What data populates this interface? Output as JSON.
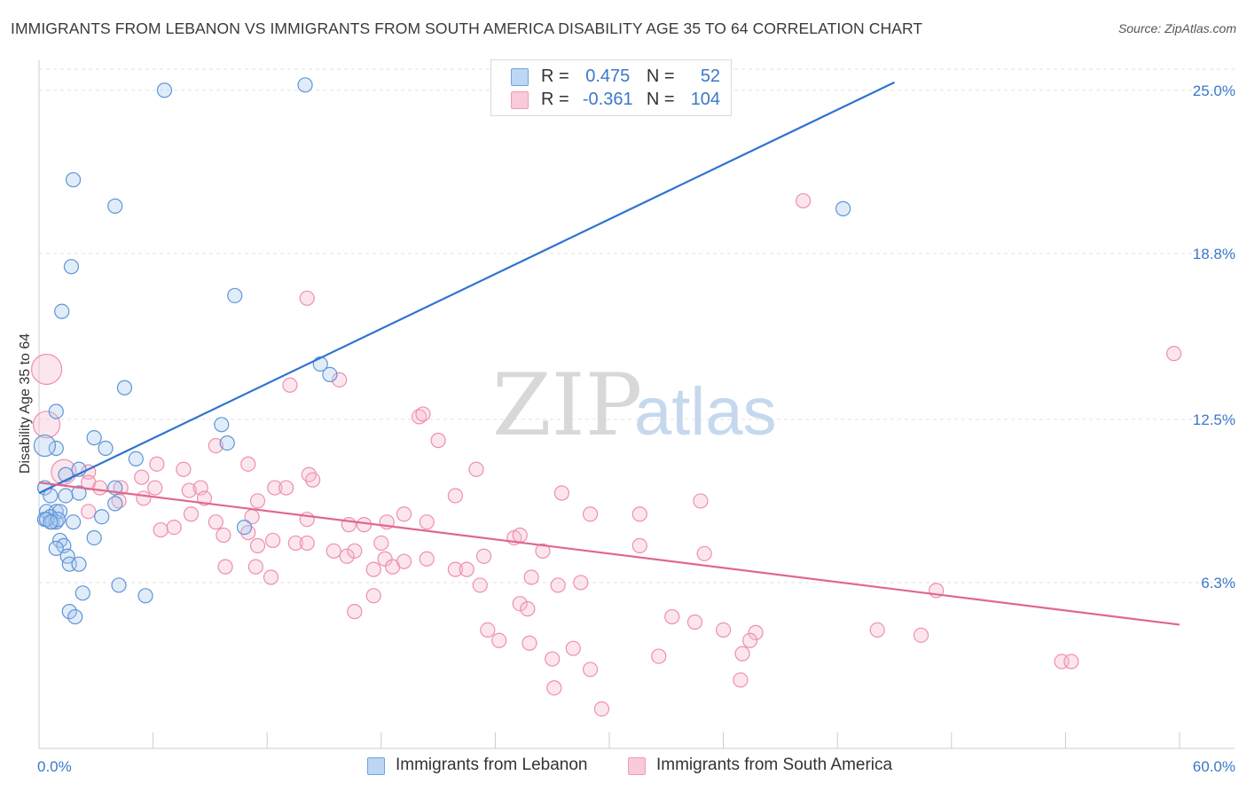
{
  "title": "IMMIGRANTS FROM LEBANON VS IMMIGRANTS FROM SOUTH AMERICA DISABILITY AGE 35 TO 64 CORRELATION CHART",
  "source": "Source: ZipAtlas.com",
  "watermark": {
    "zip": "ZIP",
    "atlas": "atlas"
  },
  "legend": {
    "rows": [
      {
        "r_label": "R =",
        "r_value": "0.475",
        "n_label": "N =",
        "n_value": "52",
        "color": "#a8c8ef"
      },
      {
        "r_label": "R =",
        "r_value": "-0.361",
        "n_label": "N =",
        "n_value": "104",
        "color": "#f6b6cb"
      }
    ]
  },
  "bottom_legend": {
    "series1": "Immigrants from Lebanon",
    "series2": "Immigrants from South America"
  },
  "chart_data": {
    "type": "scatter",
    "title": "IMMIGRANTS FROM LEBANON VS IMMIGRANTS FROM SOUTH AMERICA DISABILITY AGE 35 TO 64 CORRELATION CHART",
    "xlabel": "",
    "ylabel": "Disability Age 35 to 64",
    "xlim": [
      0,
      60
    ],
    "ylim": [
      0,
      25.8
    ],
    "x_tick_labels": [
      "0.0%",
      "60.0%"
    ],
    "y_ticks": [
      6.3,
      12.5,
      18.8,
      25.0
    ],
    "y_tick_labels": [
      "6.3%",
      "12.5%",
      "18.8%",
      "25.0%"
    ],
    "grid": true,
    "series": [
      {
        "name": "Immigrants from Lebanon",
        "color": "#6fa3e0",
        "trend": {
          "x": [
            0,
            45
          ],
          "y": [
            9.7,
            25.3
          ],
          "color": "#2f73d0"
        },
        "points": [
          [
            6.6,
            25.0
          ],
          [
            14.0,
            25.2
          ],
          [
            1.8,
            21.6
          ],
          [
            4.0,
            20.6
          ],
          [
            1.7,
            18.3
          ],
          [
            10.3,
            17.2
          ],
          [
            1.2,
            16.6
          ],
          [
            14.8,
            14.6
          ],
          [
            15.3,
            14.2
          ],
          [
            4.5,
            13.7
          ],
          [
            42.3,
            20.5
          ],
          [
            0.9,
            12.8
          ],
          [
            9.6,
            12.3
          ],
          [
            9.9,
            11.6
          ],
          [
            2.9,
            11.8
          ],
          [
            3.5,
            11.4
          ],
          [
            0.9,
            11.4
          ],
          [
            5.1,
            11.0
          ],
          [
            2.1,
            10.6
          ],
          [
            1.4,
            10.4
          ],
          [
            0.3,
            9.9
          ],
          [
            0.6,
            9.6
          ],
          [
            1.4,
            9.6
          ],
          [
            2.1,
            9.7
          ],
          [
            4.0,
            9.9
          ],
          [
            4.0,
            9.3
          ],
          [
            0.4,
            9.0
          ],
          [
            0.9,
            9.0
          ],
          [
            1.1,
            9.0
          ],
          [
            0.6,
            8.8
          ],
          [
            0.3,
            8.7
          ],
          [
            0.7,
            8.6
          ],
          [
            0.9,
            8.6
          ],
          [
            1.8,
            8.6
          ],
          [
            3.3,
            8.8
          ],
          [
            10.8,
            8.4
          ],
          [
            2.9,
            8.0
          ],
          [
            1.1,
            7.9
          ],
          [
            1.3,
            7.7
          ],
          [
            0.9,
            7.6
          ],
          [
            1.5,
            7.3
          ],
          [
            1.6,
            7.0
          ],
          [
            2.1,
            7.0
          ],
          [
            4.2,
            6.2
          ],
          [
            2.3,
            5.9
          ],
          [
            5.6,
            5.8
          ],
          [
            1.6,
            5.2
          ],
          [
            1.9,
            5.0
          ],
          [
            0.3,
            11.5
          ],
          [
            0.4,
            8.7
          ],
          [
            1.0,
            8.7
          ],
          [
            0.6,
            8.6
          ]
        ]
      },
      {
        "name": "Immigrants from South America",
        "color": "#f29ab7",
        "trend": {
          "x": [
            0,
            60
          ],
          "y": [
            10.1,
            4.7
          ],
          "color": "#e0678f"
        },
        "points": [
          [
            0.4,
            14.4
          ],
          [
            0.4,
            12.3
          ],
          [
            40.2,
            20.8
          ],
          [
            14.1,
            17.1
          ],
          [
            59.7,
            15.0
          ],
          [
            15.8,
            14.0
          ],
          [
            13.2,
            13.8
          ],
          [
            20.0,
            12.6
          ],
          [
            20.2,
            12.7
          ],
          [
            21.0,
            11.7
          ],
          [
            9.3,
            11.5
          ],
          [
            1.3,
            10.5
          ],
          [
            2.6,
            10.5
          ],
          [
            2.6,
            10.1
          ],
          [
            5.4,
            10.3
          ],
          [
            6.2,
            10.8
          ],
          [
            7.6,
            10.6
          ],
          [
            11.0,
            10.8
          ],
          [
            14.2,
            10.4
          ],
          [
            14.4,
            10.2
          ],
          [
            23.0,
            10.6
          ],
          [
            3.2,
            9.9
          ],
          [
            4.3,
            9.9
          ],
          [
            6.1,
            9.9
          ],
          [
            7.9,
            9.8
          ],
          [
            8.5,
            9.9
          ],
          [
            12.4,
            9.9
          ],
          [
            13.0,
            9.9
          ],
          [
            4.2,
            9.4
          ],
          [
            5.5,
            9.5
          ],
          [
            8.7,
            9.5
          ],
          [
            11.5,
            9.4
          ],
          [
            21.9,
            9.6
          ],
          [
            27.5,
            9.7
          ],
          [
            34.8,
            9.4
          ],
          [
            2.6,
            9.0
          ],
          [
            8.0,
            8.9
          ],
          [
            9.3,
            8.6
          ],
          [
            11.2,
            8.8
          ],
          [
            14.1,
            8.7
          ],
          [
            16.3,
            8.5
          ],
          [
            17.1,
            8.5
          ],
          [
            18.3,
            8.6
          ],
          [
            19.2,
            8.9
          ],
          [
            20.4,
            8.6
          ],
          [
            25.0,
            8.0
          ],
          [
            25.3,
            8.1
          ],
          [
            29.0,
            8.9
          ],
          [
            31.6,
            8.9
          ],
          [
            6.4,
            8.3
          ],
          [
            7.1,
            8.4
          ],
          [
            9.7,
            8.1
          ],
          [
            11.0,
            8.2
          ],
          [
            11.5,
            7.7
          ],
          [
            12.3,
            7.9
          ],
          [
            13.5,
            7.8
          ],
          [
            14.1,
            7.8
          ],
          [
            15.5,
            7.5
          ],
          [
            16.2,
            7.3
          ],
          [
            16.6,
            7.5
          ],
          [
            18.0,
            7.8
          ],
          [
            18.2,
            7.2
          ],
          [
            18.6,
            6.9
          ],
          [
            19.2,
            7.1
          ],
          [
            20.4,
            7.2
          ],
          [
            23.4,
            7.3
          ],
          [
            26.5,
            7.5
          ],
          [
            31.6,
            7.7
          ],
          [
            35.0,
            7.4
          ],
          [
            9.8,
            6.9
          ],
          [
            11.4,
            6.9
          ],
          [
            12.2,
            6.5
          ],
          [
            17.6,
            6.8
          ],
          [
            21.9,
            6.8
          ],
          [
            22.5,
            6.8
          ],
          [
            23.2,
            6.2
          ],
          [
            25.9,
            6.5
          ],
          [
            27.3,
            6.2
          ],
          [
            28.5,
            6.3
          ],
          [
            47.2,
            6.0
          ],
          [
            16.6,
            5.2
          ],
          [
            17.6,
            5.8
          ],
          [
            25.3,
            5.5
          ],
          [
            25.7,
            5.3
          ],
          [
            33.3,
            5.0
          ],
          [
            34.5,
            4.8
          ],
          [
            36.0,
            4.5
          ],
          [
            37.7,
            4.4
          ],
          [
            44.1,
            4.5
          ],
          [
            46.4,
            4.3
          ],
          [
            23.6,
            4.5
          ],
          [
            24.2,
            4.1
          ],
          [
            25.8,
            4.0
          ],
          [
            27.0,
            3.4
          ],
          [
            28.1,
            3.8
          ],
          [
            32.6,
            3.5
          ],
          [
            37.0,
            3.6
          ],
          [
            37.4,
            4.1
          ],
          [
            53.8,
            3.3
          ],
          [
            54.3,
            3.3
          ],
          [
            27.1,
            2.3
          ],
          [
            29.6,
            1.5
          ],
          [
            29.0,
            3.0
          ],
          [
            36.9,
            2.6
          ]
        ]
      }
    ]
  }
}
